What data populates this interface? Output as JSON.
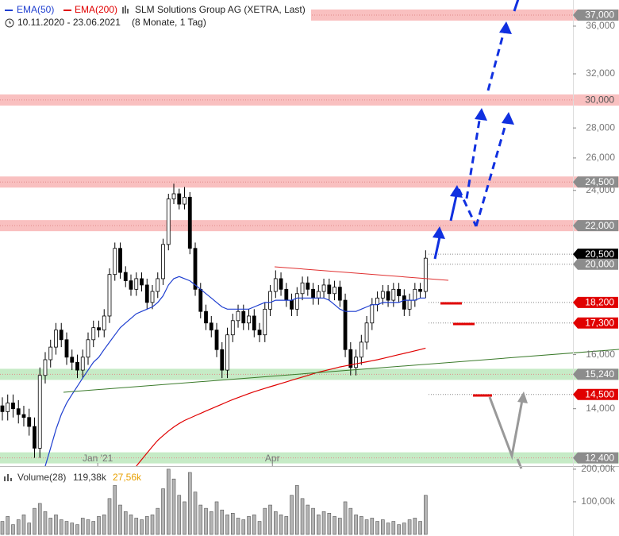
{
  "header": {
    "title": "SLM Solutions Group AG (XETRA, Last)",
    "date_range": "10.11.2020 - 23.06.2021",
    "duration": "(8 Monate, 1 Tag)"
  },
  "chart_data": {
    "type": "candlestick",
    "ohlc": [
      [
        14100,
        14400,
        13600,
        13900
      ],
      [
        13900,
        14500,
        13600,
        14200
      ],
      [
        14200,
        14500,
        13700,
        14000
      ],
      [
        14000,
        14300,
        13500,
        13800
      ],
      [
        13800,
        14100,
        13400,
        13700
      ],
      [
        13700,
        14000,
        13100,
        13400
      ],
      [
        13400,
        13700,
        12400,
        12700
      ],
      [
        12700,
        15500,
        12400,
        15200
      ],
      [
        15200,
        16100,
        14900,
        15800
      ],
      [
        15800,
        16600,
        15500,
        16300
      ],
      [
        16300,
        17300,
        16000,
        17000
      ],
      [
        17000,
        17300,
        16300,
        16600
      ],
      [
        16600,
        16900,
        15600,
        15900
      ],
      [
        15900,
        16200,
        15400,
        15700
      ],
      [
        15700,
        16000,
        15100,
        15400
      ],
      [
        15400,
        16200,
        15100,
        15900
      ],
      [
        15900,
        16900,
        15600,
        16600
      ],
      [
        16600,
        17400,
        16300,
        17100
      ],
      [
        17100,
        17400,
        16700,
        17000
      ],
      [
        17000,
        17900,
        16700,
        17600
      ],
      [
        17600,
        19800,
        17300,
        19500
      ],
      [
        19500,
        21100,
        19200,
        20800
      ],
      [
        20800,
        21100,
        19300,
        19600
      ],
      [
        19600,
        19900,
        18900,
        19200
      ],
      [
        19200,
        19500,
        18500,
        18800
      ],
      [
        18800,
        19600,
        18500,
        19300
      ],
      [
        19300,
        19600,
        18700,
        19000
      ],
      [
        19000,
        19300,
        17900,
        18200
      ],
      [
        18200,
        19000,
        17900,
        18700
      ],
      [
        18700,
        19600,
        18400,
        19300
      ],
      [
        19300,
        21300,
        19000,
        21000
      ],
      [
        21000,
        23800,
        20700,
        23500
      ],
      [
        23500,
        24400,
        23200,
        23800
      ],
      [
        23800,
        24100,
        22900,
        23200
      ],
      [
        23200,
        24200,
        22900,
        23600
      ],
      [
        23600,
        23900,
        20500,
        20800
      ],
      [
        20800,
        21100,
        18500,
        18800
      ],
      [
        18800,
        19100,
        17500,
        17800
      ],
      [
        17800,
        18100,
        17000,
        17300
      ],
      [
        17300,
        17600,
        16700,
        17000
      ],
      [
        17000,
        17300,
        15900,
        16200
      ],
      [
        16200,
        16500,
        15100,
        15400
      ],
      [
        15400,
        17100,
        15100,
        16800
      ],
      [
        16800,
        17700,
        16500,
        17400
      ],
      [
        17400,
        18100,
        17100,
        17800
      ],
      [
        17800,
        18100,
        17000,
        17300
      ],
      [
        17300,
        17900,
        17000,
        17600
      ],
      [
        17600,
        17900,
        16700,
        17000
      ],
      [
        17000,
        17300,
        16500,
        16800
      ],
      [
        16800,
        18200,
        16500,
        17900
      ],
      [
        17900,
        19000,
        17600,
        18700
      ],
      [
        18700,
        19700,
        18400,
        19300
      ],
      [
        19300,
        19600,
        18500,
        18800
      ],
      [
        18800,
        19100,
        18000,
        18300
      ],
      [
        18300,
        18600,
        17600,
        17900
      ],
      [
        17900,
        18900,
        17600,
        18600
      ],
      [
        18600,
        19400,
        18300,
        19100
      ],
      [
        19100,
        19400,
        18500,
        18800
      ],
      [
        18800,
        19100,
        18100,
        18400
      ],
      [
        18400,
        19000,
        18100,
        18700
      ],
      [
        18700,
        19300,
        18400,
        19000
      ],
      [
        19000,
        19300,
        18300,
        18600
      ],
      [
        18600,
        19200,
        18300,
        18900
      ],
      [
        18900,
        19200,
        18000,
        18300
      ],
      [
        18300,
        18600,
        15900,
        16200
      ],
      [
        16200,
        16500,
        15200,
        15500
      ],
      [
        15500,
        16200,
        15200,
        15900
      ],
      [
        15900,
        16800,
        15600,
        16500
      ],
      [
        16500,
        17600,
        16200,
        17300
      ],
      [
        17300,
        18400,
        17000,
        18100
      ],
      [
        18100,
        18700,
        17800,
        18400
      ],
      [
        18400,
        19000,
        18100,
        18700
      ],
      [
        18700,
        19000,
        18000,
        18300
      ],
      [
        18300,
        19100,
        18000,
        18800
      ],
      [
        18800,
        19100,
        18200,
        18500
      ],
      [
        18500,
        18800,
        17600,
        17900
      ],
      [
        17900,
        18600,
        17600,
        18300
      ],
      [
        18300,
        19100,
        18000,
        18800
      ],
      [
        18800,
        19100,
        18400,
        18700
      ],
      [
        18700,
        20700,
        18400,
        20300
      ]
    ],
    "up_color": "#ffffff",
    "down_color": "#000000",
    "xlim": [
      -0.44,
      106.5
    ],
    "xticks": [
      {
        "value": 17.8,
        "label": "Jan '21"
      },
      {
        "value": 50.4,
        "label": "Apr"
      }
    ],
    "ylim": [
      12150,
      38400
    ],
    "log_scale": true,
    "yticks": [
      {
        "value": 36000,
        "label": "36,000"
      },
      {
        "value": 32000,
        "label": "32,000"
      },
      {
        "value": 28000,
        "label": "28,000"
      },
      {
        "value": 26000,
        "label": "26,000"
      },
      {
        "value": 24000,
        "label": "24,000"
      },
      {
        "value": 16000,
        "label": "16,000"
      },
      {
        "value": 14000,
        "label": "14,000"
      }
    ],
    "series": [
      {
        "name": "EMA(50)",
        "color": "#1f3fd0",
        "values": [
          null,
          null,
          null,
          null,
          null,
          null,
          null,
          null,
          12150,
          12700,
          13300,
          13800,
          14200,
          14500,
          14800,
          15100,
          15400,
          15700,
          15900,
          16200,
          16500,
          16800,
          17100,
          17300,
          17500,
          17700,
          17800,
          17900,
          18000,
          18200,
          18500,
          19000,
          19300,
          19400,
          19300,
          19200,
          19000,
          18800,
          18600,
          18400,
          18200,
          18000,
          17900,
          17900,
          17900,
          17900,
          17900,
          18000,
          18100,
          18200,
          18200,
          18300,
          18300,
          18300,
          18300,
          18400,
          18400,
          18400,
          18400,
          18400,
          18400,
          18300,
          18100,
          17900,
          17800,
          17800,
          17800,
          17900,
          18000,
          18100,
          18100,
          18200,
          18200,
          18200,
          18200,
          18300,
          18300,
          18300,
          18400,
          18400
        ]
      },
      {
        "name": "EMA(200)",
        "color": "#e00000",
        "values": [
          null,
          null,
          null,
          null,
          null,
          null,
          null,
          null,
          null,
          null,
          null,
          null,
          null,
          null,
          null,
          null,
          null,
          null,
          null,
          null,
          null,
          null,
          null,
          null,
          null,
          12150,
          12350,
          12550,
          12750,
          12950,
          13100,
          13250,
          13380,
          13500,
          13600,
          13680,
          13760,
          13840,
          13920,
          14000,
          14080,
          14160,
          14240,
          14320,
          14390,
          14460,
          14530,
          14600,
          14660,
          14720,
          14780,
          14840,
          14900,
          14960,
          15020,
          15080,
          15140,
          15200,
          15260,
          15320,
          15370,
          15420,
          15470,
          15520,
          15560,
          15600,
          15640,
          15680,
          15720,
          15760,
          15800,
          15850,
          15900,
          15950,
          16000,
          16050,
          16100,
          16150,
          16200,
          16260
        ]
      }
    ],
    "price_levels": [
      {
        "value": 37000,
        "label": "37,000",
        "box": "#8c8c8c",
        "text_color": "#ffffff",
        "band": "#f9c0c0"
      },
      {
        "value": 30000,
        "label": "30,000",
        "box": "#f9c0c0",
        "text_color": "#555555",
        "band": "#f9c0c0"
      },
      {
        "value": 24500,
        "label": "24,500",
        "box": "#8c8c8c",
        "text_color": "#ffffff",
        "band": "#f9c0c0"
      },
      {
        "value": 22000,
        "label": "22,000",
        "box": "#8c8c8c",
        "text_color": "#ffffff",
        "band": "#f9c0c0"
      },
      {
        "value": 20500,
        "label": "20,500",
        "box": "#000000",
        "text_color": "#ffffff",
        "band": null
      },
      {
        "value": 20000,
        "label": "20,000",
        "box": "#8c8c8c",
        "text_color": "#ffffff",
        "band": null
      },
      {
        "value": 18200,
        "label": "18,200",
        "box": "#e00000",
        "text_color": "#ffffff",
        "band": null
      },
      {
        "value": 17300,
        "label": "17,300",
        "box": "#e00000",
        "text_color": "#ffffff",
        "band": null
      },
      {
        "value": 15240,
        "label": "15,240",
        "box": "#8c8c8c",
        "text_color": "#ffffff",
        "band": "#c6ebc6"
      },
      {
        "value": 14500,
        "label": "14,500",
        "box": "#e00000",
        "text_color": "#ffffff",
        "band": null
      },
      {
        "value": 12400,
        "label": "12,400",
        "box": "#8c8c8c",
        "text_color": "#ffffff",
        "band": "#c6ebc6"
      }
    ],
    "volume": {
      "name": "Volume(28)",
      "value_label": "119,38k",
      "average_label": "27,56k",
      "color": "#b4b4b4",
      "values": [
        40000,
        55000,
        30000,
        45000,
        60000,
        35000,
        80000,
        95000,
        70000,
        50000,
        60000,
        45000,
        40000,
        35000,
        30000,
        50000,
        45000,
        40000,
        55000,
        60000,
        110000,
        150000,
        90000,
        70000,
        60000,
        50000,
        45000,
        55000,
        60000,
        80000,
        140000,
        200000,
        170000,
        120000,
        100000,
        190000,
        130000,
        90000,
        80000,
        70000,
        100000,
        75000,
        60000,
        65000,
        50000,
        45000,
        55000,
        60000,
        40000,
        80000,
        90000,
        70000,
        60000,
        55000,
        120000,
        150000,
        110000,
        90000,
        80000,
        60000,
        70000,
        65000,
        55000,
        50000,
        100000,
        80000,
        60000,
        55000,
        45000,
        50000,
        40000,
        45000,
        35000,
        40000,
        30000,
        35000,
        45000,
        50000,
        40000,
        120000
      ],
      "ylim": [
        0,
        207000
      ],
      "yticks": [
        {
          "value": 200000,
          "label": "200,00k"
        },
        {
          "value": 100000,
          "label": "100,00k"
        }
      ]
    }
  }
}
